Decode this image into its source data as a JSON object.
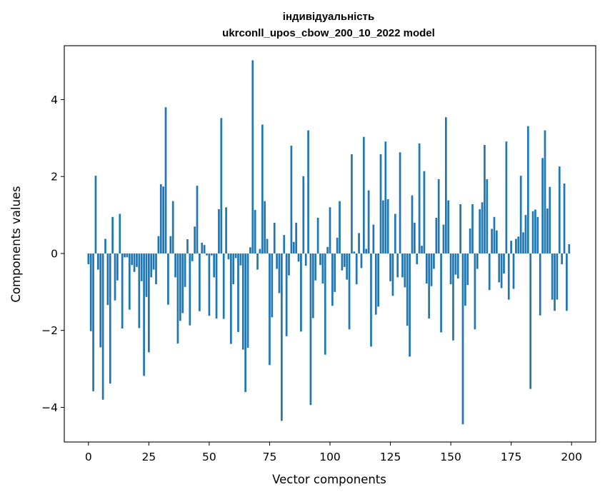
{
  "chart_data": {
    "type": "bar",
    "title_line1": "індивідуальність",
    "title_line2": "ukrconll_upos_cbow_200_10_2022 model",
    "xlabel": "Vector components",
    "ylabel": "Components values",
    "xlim": [
      -10,
      210
    ],
    "ylim": [
      -4.9,
      5.4
    ],
    "x_ticks": [
      0,
      25,
      50,
      75,
      100,
      125,
      150,
      175,
      200
    ],
    "x_tick_labels": [
      "0",
      "25",
      "50",
      "75",
      "100",
      "125",
      "150",
      "175",
      "200"
    ],
    "y_ticks": [
      -4,
      -2,
      0,
      2,
      4
    ],
    "y_tick_labels": [
      "−4",
      "−2",
      "0",
      "2",
      "4"
    ],
    "bar_color": "#1f77b4",
    "grid": false,
    "values": [
      -0.28,
      -2.02,
      -3.58,
      2.02,
      -0.42,
      -2.44,
      -3.8,
      0.38,
      -1.34,
      -3.38,
      0.95,
      -1.22,
      -0.7,
      1.03,
      -1.95,
      -0.1,
      -0.1,
      -1.46,
      -0.3,
      -0.48,
      -0.35,
      -1.94,
      -0.72,
      -3.18,
      -1.13,
      -2.57,
      -0.62,
      -0.42,
      -0.8,
      0.45,
      1.8,
      1.74,
      3.8,
      -1.33,
      0.45,
      1.36,
      -0.62,
      -2.34,
      -1.75,
      -1.55,
      -0.87,
      0.37,
      -1.87,
      -0.2,
      0.7,
      1.76,
      -1.5,
      0.28,
      0.22,
      -0.05,
      -1.62,
      -0.05,
      -0.62,
      -1.69,
      1.15,
      3.52,
      -1.7,
      1.2,
      -0.15,
      -2.35,
      -0.8,
      -0.12,
      -2.04,
      -0.31,
      -2.5,
      -3.6,
      -2.45,
      0.16,
      5.02,
      1.13,
      -0.42,
      0.12,
      3.35,
      1.36,
      0.38,
      -2.9,
      -1.66,
      0.8,
      -0.4,
      -1.03,
      -4.35,
      0.48,
      -2.15,
      -0.57,
      2.8,
      0.3,
      0.8,
      -0.21,
      -2.03,
      2.01,
      -0.32,
      3.2,
      -3.94,
      -1.68,
      -0.7,
      0.93,
      -0.3,
      -0.78,
      -2.63,
      0.17,
      1.2,
      -1.36,
      -1.0,
      0.41,
      1.36,
      -0.44,
      -0.35,
      -0.68,
      -1.97,
      2.58,
      0.05,
      -0.8,
      0.53,
      -0.38,
      3.03,
      0.12,
      1.64,
      -2.42,
      0.75,
      -1.59,
      -1.38,
      2.58,
      1.38,
      2.91,
      1.41,
      -0.72,
      -1.1,
      1.03,
      -0.62,
      2.63,
      -0.62,
      -0.88,
      -1.88,
      -2.68,
      1.51,
      0.8,
      -0.28,
      2.86,
      0.2,
      2.14,
      -0.78,
      -1.69,
      -0.85,
      -0.4,
      0.93,
      1.93,
      -2.05,
      0.75,
      3.54,
      1.38,
      -0.8,
      -2.26,
      -0.55,
      -0.65,
      1.28,
      -4.44,
      -1.36,
      -0.82,
      0.65,
      1.28,
      -1.97,
      -0.4,
      1.15,
      1.33,
      2.82,
      1.93,
      -0.95,
      0.64,
      0.95,
      0.6,
      -0.75,
      -0.9,
      -0.52,
      2.91,
      -1.2,
      0.33,
      -0.92,
      0.38,
      0.44,
      2.02,
      0.55,
      1.0,
      3.31,
      -3.52,
      1.1,
      1.14,
      0.95,
      -1.61,
      2.48,
      3.2,
      1.17,
      1.73,
      -1.2,
      -1.49,
      -1.2,
      2.26,
      -0.28,
      1.82,
      -1.49,
      0.24
    ]
  }
}
